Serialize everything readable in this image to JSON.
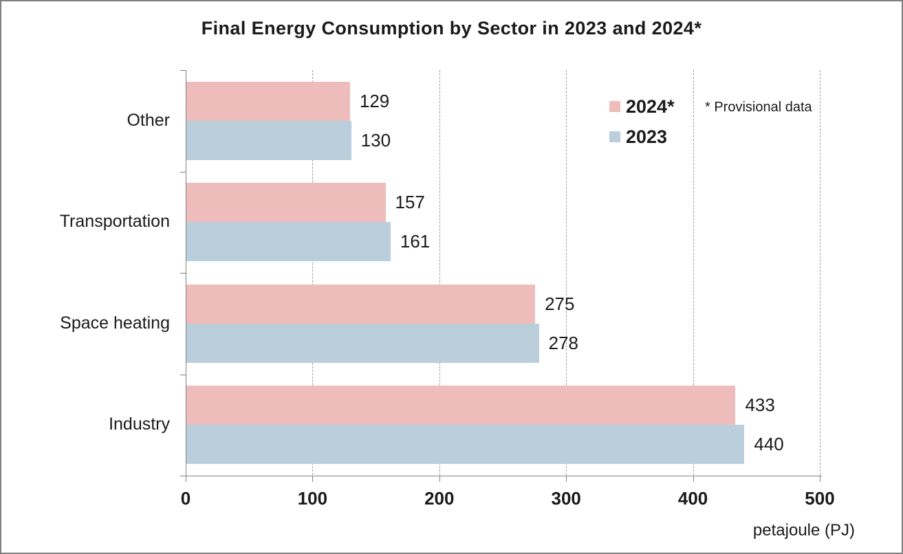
{
  "title": "Final Energy Consumption by Sector in 2023 and 2024*",
  "legend": {
    "items": [
      {
        "label": "2024*",
        "color": "#EEBDBB"
      },
      {
        "label": "2023",
        "color": "#BACFDB"
      }
    ],
    "note": "* Provisional data"
  },
  "x_axis": {
    "ticks": [
      "0",
      "100",
      "200",
      "300",
      "400",
      "500"
    ],
    "label": "petajoule (PJ)"
  },
  "chart_data": {
    "type": "bar",
    "orientation": "horizontal",
    "title": "Final Energy Consumption by Sector in 2023 and 2024*",
    "categories": [
      "Other",
      "Transportation",
      "Space heating",
      "Industry"
    ],
    "series": [
      {
        "name": "2024*",
        "color": "#EEBDBB",
        "values": [
          129,
          157,
          275,
          433
        ]
      },
      {
        "name": "2023",
        "color": "#BACFDB",
        "values": [
          130,
          161,
          278,
          440
        ]
      }
    ],
    "xlabel": "petajoule (PJ)",
    "xlim": [
      0,
      500
    ],
    "x_tick_interval": 100,
    "grid": "vertical-dashed",
    "legend_position": "top-right",
    "annotations": [
      "* Provisional data"
    ],
    "data_labels": true
  },
  "colors": {
    "bar_2024": "#EEBDBB",
    "bar_2023": "#BACFDB",
    "axis": "#7F7F7F",
    "gridline": "#9B9B9B",
    "text": "#1A1A1A",
    "background": "#FFFFFF",
    "border": "#7F7F7F"
  }
}
